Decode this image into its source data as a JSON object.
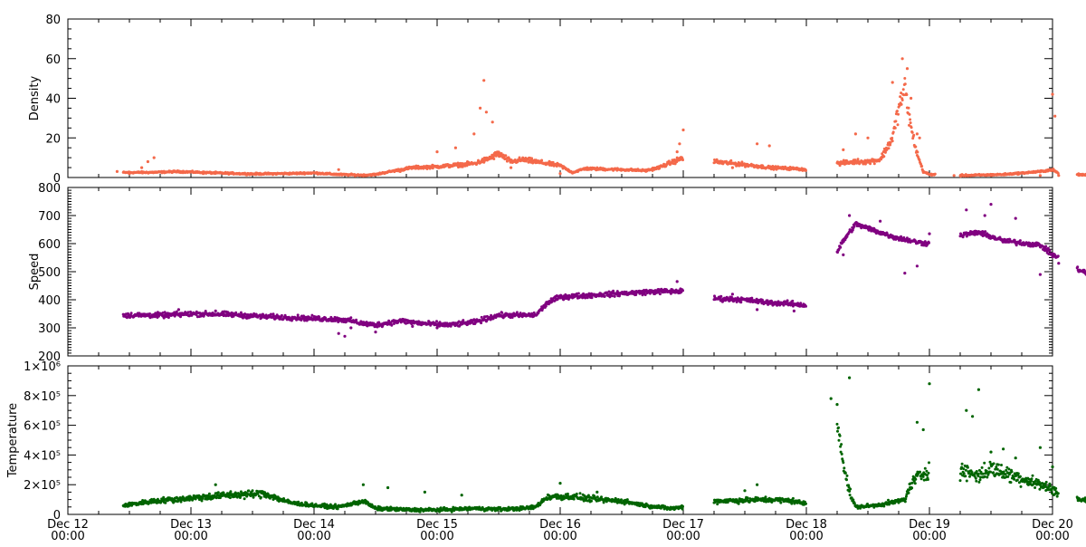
{
  "chart_data": [
    {
      "type": "scatter",
      "id": "density",
      "ylabel": "Density",
      "ylim": [
        0,
        80
      ],
      "yticks": [
        0,
        20,
        40,
        60,
        80
      ],
      "ytick_labels": [
        "0",
        "20",
        "40",
        "60",
        "80"
      ],
      "color": "#F4694A",
      "series_profile": [
        [
          0.45,
          2.5
        ],
        [
          0.7,
          2.6
        ],
        [
          0.9,
          3.0
        ],
        [
          1.2,
          2.3
        ],
        [
          1.5,
          1.8
        ],
        [
          1.8,
          2.0
        ],
        [
          2.0,
          2.3
        ],
        [
          2.2,
          1.5
        ],
        [
          2.4,
          1.2
        ],
        [
          2.5,
          1.5
        ],
        [
          2.6,
          2.8
        ],
        [
          2.8,
          5
        ],
        [
          3.0,
          5.5
        ],
        [
          3.1,
          6
        ],
        [
          3.3,
          7
        ],
        [
          3.4,
          9
        ],
        [
          3.5,
          12
        ],
        [
          3.6,
          8
        ],
        [
          3.7,
          9
        ],
        [
          3.9,
          7
        ],
        [
          4.0,
          6
        ],
        [
          4.1,
          2.5
        ],
        [
          4.2,
          4.5
        ],
        [
          4.5,
          4
        ],
        [
          4.7,
          3.5
        ],
        [
          4.8,
          5
        ],
        [
          4.9,
          7.5
        ],
        [
          5.0,
          10
        ],
        [
          null,
          null
        ],
        [
          5.25,
          8
        ],
        [
          5.5,
          6.5
        ],
        [
          5.7,
          5
        ],
        [
          5.9,
          4.5
        ],
        [
          6.0,
          4
        ],
        [
          null,
          null
        ],
        [
          6.25,
          7
        ],
        [
          6.4,
          8
        ],
        [
          6.5,
          8
        ],
        [
          6.6,
          9
        ],
        [
          6.7,
          20
        ],
        [
          6.75,
          35
        ],
        [
          6.8,
          45
        ],
        [
          6.85,
          25
        ],
        [
          6.9,
          12
        ],
        [
          6.95,
          3
        ],
        [
          7.0,
          1.5
        ],
        [
          7.05,
          1.5
        ],
        [
          null,
          null
        ],
        [
          7.25,
          1
        ],
        [
          7.4,
          1.2
        ],
        [
          7.6,
          1.5
        ],
        [
          7.8,
          2.5
        ],
        [
          7.9,
          3
        ],
        [
          8.0,
          4
        ],
        [
          8.05,
          2
        ],
        [
          null,
          null
        ],
        [
          8.2,
          1.5
        ],
        [
          8.35,
          1
        ]
      ],
      "outliers": [
        [
          0.4,
          3
        ],
        [
          0.5,
          2
        ],
        [
          0.6,
          5
        ],
        [
          0.65,
          8
        ],
        [
          0.7,
          10
        ],
        [
          1.1,
          2
        ],
        [
          2.2,
          4
        ],
        [
          2.7,
          3
        ],
        [
          3.0,
          13
        ],
        [
          3.15,
          15
        ],
        [
          3.3,
          22
        ],
        [
          3.35,
          35
        ],
        [
          3.38,
          49
        ],
        [
          3.4,
          33
        ],
        [
          3.45,
          28
        ],
        [
          3.6,
          5
        ],
        [
          4.0,
          2
        ],
        [
          4.95,
          13
        ],
        [
          4.97,
          17
        ],
        [
          5.0,
          24
        ],
        [
          5.4,
          5
        ],
        [
          5.6,
          17
        ],
        [
          5.7,
          16
        ],
        [
          6.3,
          14
        ],
        [
          6.4,
          22
        ],
        [
          6.5,
          20
        ],
        [
          6.7,
          48
        ],
        [
          6.78,
          60
        ],
        [
          6.82,
          55
        ],
        [
          6.85,
          40
        ],
        [
          6.9,
          22
        ],
        [
          6.92,
          20
        ],
        [
          7.2,
          1
        ],
        [
          7.9,
          1
        ],
        [
          8.0,
          42
        ],
        [
          8.02,
          31
        ],
        [
          8.05,
          1
        ]
      ]
    },
    {
      "type": "scatter",
      "id": "speed",
      "ylabel": "Speed",
      "ylim": [
        200,
        800
      ],
      "yticks": [
        200,
        300,
        400,
        500,
        600,
        700,
        800
      ],
      "ytick_labels": [
        "200",
        "300",
        "400",
        "500",
        "600",
        "700",
        "800"
      ],
      "color": "#800080",
      "series_profile": [
        [
          0.45,
          345
        ],
        [
          0.8,
          345
        ],
        [
          1.0,
          350
        ],
        [
          1.3,
          348
        ],
        [
          1.6,
          340
        ],
        [
          1.9,
          335
        ],
        [
          2.2,
          330
        ],
        [
          2.3,
          325
        ],
        [
          2.4,
          315
        ],
        [
          2.5,
          310
        ],
        [
          2.7,
          325
        ],
        [
          2.9,
          315
        ],
        [
          3.1,
          310
        ],
        [
          3.3,
          320
        ],
        [
          3.5,
          345
        ],
        [
          3.7,
          345
        ],
        [
          3.8,
          345
        ],
        [
          3.9,
          390
        ],
        [
          4.0,
          410
        ],
        [
          4.2,
          415
        ],
        [
          4.4,
          420
        ],
        [
          4.6,
          425
        ],
        [
          4.8,
          430
        ],
        [
          5.0,
          430
        ],
        [
          null,
          null
        ],
        [
          5.25,
          405
        ],
        [
          5.5,
          400
        ],
        [
          5.7,
          390
        ],
        [
          5.9,
          385
        ],
        [
          6.0,
          380
        ],
        [
          null,
          null
        ],
        [
          6.25,
          570
        ],
        [
          6.3,
          610
        ],
        [
          6.4,
          670
        ],
        [
          6.5,
          655
        ],
        [
          6.6,
          640
        ],
        [
          6.7,
          625
        ],
        [
          6.8,
          615
        ],
        [
          6.9,
          605
        ],
        [
          7.0,
          600
        ],
        [
          null,
          null
        ],
        [
          7.25,
          630
        ],
        [
          7.4,
          640
        ],
        [
          7.6,
          610
        ],
        [
          7.8,
          600
        ],
        [
          7.9,
          595
        ],
        [
          8.0,
          560
        ],
        [
          8.05,
          550
        ],
        [
          null,
          null
        ],
        [
          8.2,
          510
        ],
        [
          8.3,
          490
        ],
        [
          8.35,
          470
        ]
      ],
      "outliers": [
        [
          0.9,
          365
        ],
        [
          1.2,
          360
        ],
        [
          2.2,
          280
        ],
        [
          2.25,
          270
        ],
        [
          2.3,
          300
        ],
        [
          2.5,
          285
        ],
        [
          2.8,
          305
        ],
        [
          3.0,
          300
        ],
        [
          4.95,
          465
        ],
        [
          5.4,
          420
        ],
        [
          5.6,
          365
        ],
        [
          5.9,
          360
        ],
        [
          6.3,
          560
        ],
        [
          6.35,
          700
        ],
        [
          6.6,
          680
        ],
        [
          6.8,
          495
        ],
        [
          6.9,
          520
        ],
        [
          7.0,
          635
        ],
        [
          7.3,
          720
        ],
        [
          7.45,
          700
        ],
        [
          7.5,
          740
        ],
        [
          7.7,
          690
        ],
        [
          7.9,
          490
        ],
        [
          8.05,
          530
        ],
        [
          8.35,
          460
        ]
      ]
    },
    {
      "type": "scatter",
      "id": "temperature",
      "ylabel": "Temperature",
      "ylim": [
        0,
        1000000
      ],
      "yticks": [
        0,
        200000,
        400000,
        600000,
        800000,
        1000000
      ],
      "ytick_labels": [
        "0",
        "2×10⁵",
        "4×10⁵",
        "6×10⁵",
        "8×10⁵",
        "1×10⁶"
      ],
      "color": "#006400",
      "series_profile": [
        [
          0.45,
          60000
        ],
        [
          0.7,
          90000
        ],
        [
          1.0,
          110000
        ],
        [
          1.3,
          130000
        ],
        [
          1.6,
          140000
        ],
        [
          1.8,
          80000
        ],
        [
          2.0,
          60000
        ],
        [
          2.2,
          50000
        ],
        [
          2.4,
          90000
        ],
        [
          2.5,
          40000
        ],
        [
          2.8,
          30000
        ],
        [
          3.0,
          30000
        ],
        [
          3.3,
          40000
        ],
        [
          3.5,
          35000
        ],
        [
          3.7,
          40000
        ],
        [
          3.8,
          50000
        ],
        [
          3.9,
          120000
        ],
        [
          4.1,
          120000
        ],
        [
          4.3,
          100000
        ],
        [
          4.5,
          90000
        ],
        [
          4.7,
          60000
        ],
        [
          4.9,
          40000
        ],
        [
          5.0,
          50000
        ],
        [
          null,
          null
        ],
        [
          5.25,
          90000
        ],
        [
          5.5,
          95000
        ],
        [
          5.7,
          100000
        ],
        [
          5.9,
          90000
        ],
        [
          6.0,
          70000
        ],
        [
          null,
          null
        ],
        [
          6.25,
          600000
        ],
        [
          6.28,
          500000
        ],
        [
          6.3,
          350000
        ],
        [
          6.35,
          150000
        ],
        [
          6.4,
          50000
        ],
        [
          6.55,
          60000
        ],
        [
          6.7,
          80000
        ],
        [
          6.8,
          100000
        ],
        [
          6.85,
          200000
        ],
        [
          6.9,
          250000
        ],
        [
          7.0,
          300000
        ],
        [
          null,
          null
        ],
        [
          7.25,
          300000
        ],
        [
          7.4,
          260000
        ],
        [
          7.5,
          310000
        ],
        [
          7.6,
          280000
        ],
        [
          7.8,
          230000
        ],
        [
          7.9,
          200000
        ],
        [
          8.0,
          170000
        ],
        [
          8.05,
          150000
        ],
        [
          null,
          null
        ],
        [
          8.2,
          100000
        ],
        [
          8.3,
          95000
        ],
        [
          8.35,
          90000
        ]
      ],
      "outliers": [
        [
          1.2,
          200000
        ],
        [
          2.4,
          200000
        ],
        [
          2.6,
          180000
        ],
        [
          2.9,
          150000
        ],
        [
          3.2,
          130000
        ],
        [
          4.0,
          210000
        ],
        [
          4.3,
          150000
        ],
        [
          5.5,
          160000
        ],
        [
          5.6,
          200000
        ],
        [
          6.2,
          780000
        ],
        [
          6.25,
          740000
        ],
        [
          6.35,
          920000
        ],
        [
          6.9,
          620000
        ],
        [
          6.95,
          570000
        ],
        [
          7.0,
          880000
        ],
        [
          7.3,
          700000
        ],
        [
          7.35,
          660000
        ],
        [
          7.4,
          840000
        ],
        [
          7.5,
          420000
        ],
        [
          7.6,
          440000
        ],
        [
          7.7,
          380000
        ],
        [
          7.9,
          450000
        ],
        [
          8.0,
          320000
        ],
        [
          8.3,
          190000
        ]
      ]
    }
  ],
  "x_axis": {
    "range_days": [
      0,
      8
    ],
    "tick_labels": [
      {
        "day": 0,
        "line1": "Dec 12",
        "line2": "00:00"
      },
      {
        "day": 1,
        "line1": "Dec 13",
        "line2": "00:00"
      },
      {
        "day": 2,
        "line1": "Dec 14",
        "line2": "00:00"
      },
      {
        "day": 3,
        "line1": "Dec 15",
        "line2": "00:00"
      },
      {
        "day": 4,
        "line1": "Dec 16",
        "line2": "00:00"
      },
      {
        "day": 5,
        "line1": "Dec 17",
        "line2": "00:00"
      },
      {
        "day": 6,
        "line1": "Dec 18",
        "line2": "00:00"
      },
      {
        "day": 7,
        "line1": "Dec 19",
        "line2": "00:00"
      },
      {
        "day": 8,
        "line1": "Dec 20",
        "line2": "00:00"
      }
    ]
  }
}
